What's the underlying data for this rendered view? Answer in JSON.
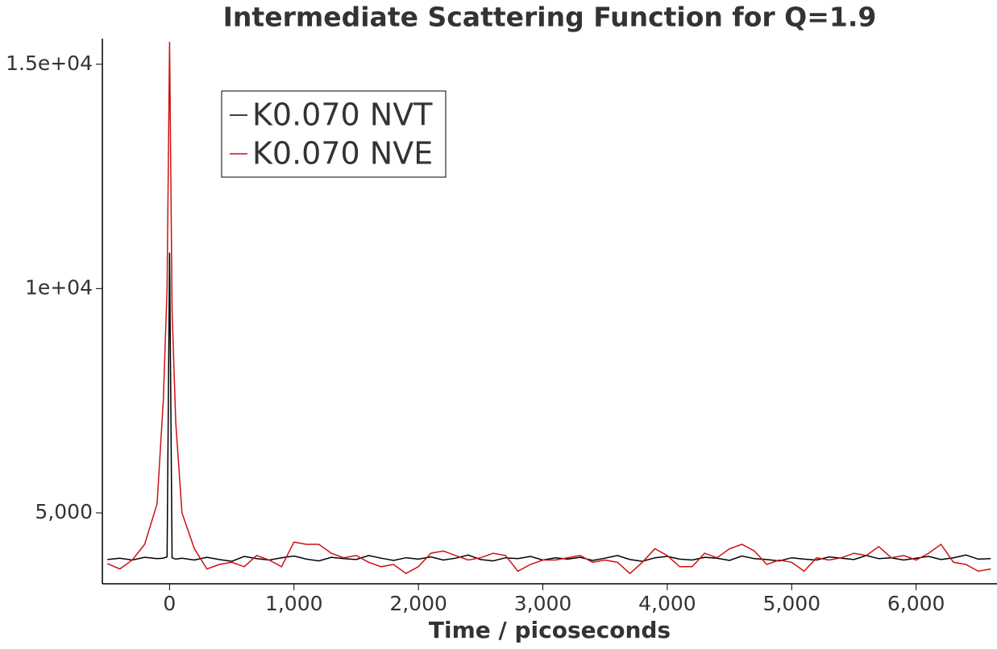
{
  "chart_data": {
    "type": "line",
    "title": "Intermediate Scattering Function for Q=1.9",
    "x_label": "Time / picoseconds",
    "x": [
      -500,
      -400,
      -300,
      -200,
      -100,
      -50,
      -20,
      0,
      20,
      50,
      100,
      200,
      300,
      400,
      500,
      600,
      700,
      800,
      900,
      1000,
      1100,
      1200,
      1300,
      1400,
      1500,
      1600,
      1700,
      1800,
      1900,
      2000,
      2100,
      2200,
      2300,
      2400,
      2500,
      2600,
      2700,
      2800,
      2900,
      3000,
      3100,
      3200,
      3300,
      3400,
      3500,
      3600,
      3700,
      3800,
      3900,
      4000,
      4100,
      4200,
      4300,
      4400,
      4500,
      4600,
      4700,
      4800,
      4900,
      5000,
      5100,
      5200,
      5300,
      5400,
      5500,
      5600,
      5700,
      5800,
      5900,
      6000,
      6100,
      6200,
      6300,
      6400,
      6500,
      6600
    ],
    "series": [
      {
        "name": "K0.070 NVT",
        "color": "#000000",
        "values": [
          3960,
          3990,
          3950,
          4010,
          3980,
          3990,
          4020,
          10800,
          4000,
          3970,
          3990,
          3950,
          4010,
          3960,
          3920,
          4030,
          3980,
          3950,
          4000,
          4040,
          3970,
          3930,
          4010,
          3980,
          3960,
          4050,
          3990,
          3940,
          4000,
          3970,
          4020,
          3950,
          3990,
          4060,
          3960,
          3930,
          4000,
          3980,
          4030,
          3950,
          4000,
          3970,
          4010,
          3940,
          3990,
          4050,
          3960,
          3920,
          4000,
          4030,
          3970,
          3950,
          4010,
          3990,
          3940,
          4040,
          3980,
          3960,
          3930,
          4000,
          3970,
          3950,
          4020,
          3990,
          3960,
          4050,
          3980,
          4000,
          3950,
          3990,
          4030,
          3960,
          4000,
          4060,
          3970,
          3980
        ]
      },
      {
        "name": "K0.070 NVE",
        "color": "#cc1111",
        "values": [
          3870,
          3750,
          3950,
          4300,
          5200,
          7500,
          10000,
          15500,
          9500,
          7000,
          5000,
          4200,
          3750,
          3850,
          3900,
          3800,
          4050,
          3950,
          3800,
          4350,
          4300,
          4300,
          4100,
          4000,
          4050,
          3900,
          3800,
          3850,
          3650,
          3800,
          4100,
          4150,
          4050,
          3950,
          4000,
          4100,
          4050,
          3700,
          3850,
          3950,
          3950,
          4000,
          4050,
          3900,
          3950,
          3900,
          3650,
          3900,
          4200,
          4050,
          3800,
          3800,
          4100,
          4000,
          4200,
          4300,
          4150,
          3850,
          3950,
          3900,
          3700,
          4000,
          3950,
          4000,
          4100,
          4050,
          4250,
          4000,
          4050,
          3950,
          4100,
          4300,
          3900,
          3850,
          3700,
          3750
        ]
      }
    ],
    "xlim": [
      -540,
      6650
    ],
    "ylim": [
      3420,
      15570
    ],
    "xticks": [
      0,
      {
        "value": 1000,
        "label": "1,000"
      },
      {
        "value": 2000,
        "label": "2,000"
      },
      {
        "value": 3000,
        "label": "3,000"
      },
      {
        "value": 4000,
        "label": "4,000"
      },
      {
        "value": 5000,
        "label": "5,000"
      },
      {
        "value": 6000,
        "label": "6,000"
      }
    ],
    "yticks": [
      {
        "value": 5000,
        "label": "5,000"
      },
      {
        "value": 10000,
        "label": "1e+04"
      },
      {
        "value": 15000,
        "label": "1.5e+04"
      }
    ],
    "legend": "upper-left"
  }
}
